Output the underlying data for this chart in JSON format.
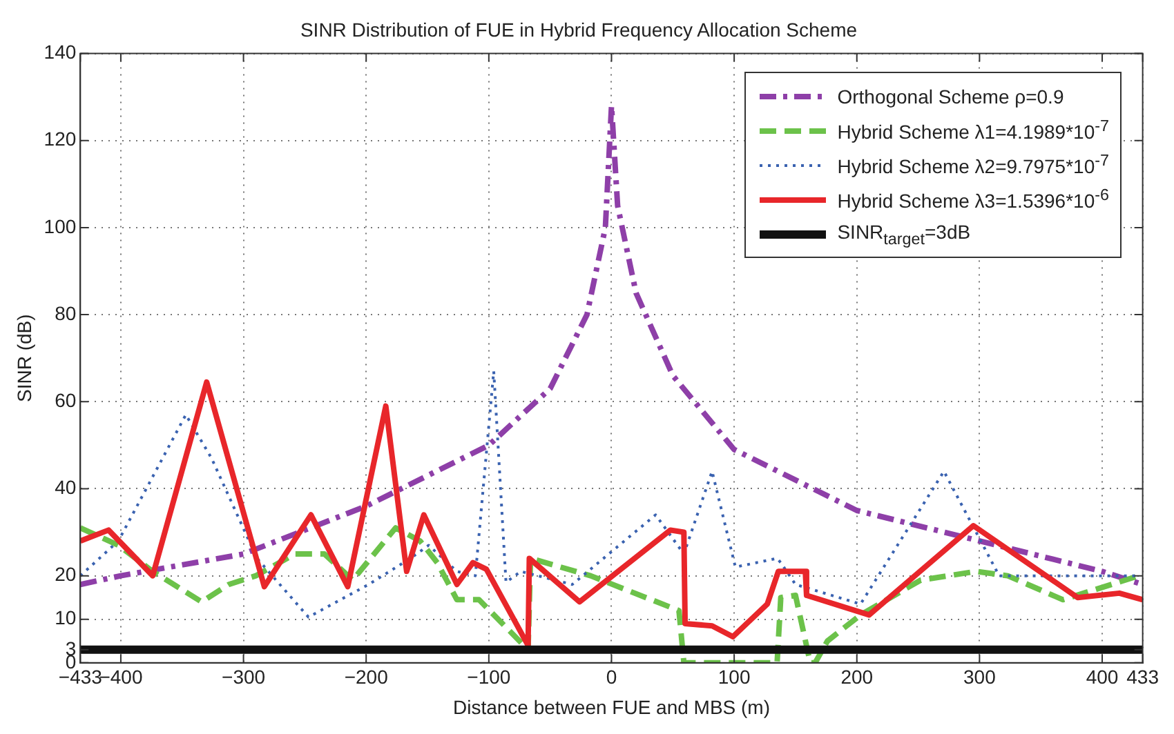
{
  "chart_data": {
    "type": "line",
    "title": "SINR Distribution of FUE in Hybrid Frequency Allocation Scheme",
    "xlabel": "Distance between FUE and MBS (m)",
    "ylabel": "SINR (dB)",
    "xlim": [
      -433,
      433
    ],
    "xticks": [
      -433,
      -400,
      -300,
      -200,
      -100,
      0,
      100,
      200,
      300,
      400,
      433
    ],
    "ylim": [
      0,
      140
    ],
    "yticks": [
      0,
      3,
      10,
      20,
      40,
      60,
      80,
      100,
      120,
      140
    ],
    "grid": true,
    "legend": "top right",
    "series": [
      {
        "name": "Orthogonal Scheme ρ=0.9",
        "color": "#8e3fa8",
        "line_style": "dashdot",
        "x": [
          -433,
          -400,
          -300,
          -200,
          -100,
          -50,
          -20,
          -5,
          0,
          5,
          20,
          50,
          100,
          200,
          300,
          400,
          433
        ],
        "values": [
          18,
          20,
          25,
          36,
          50,
          63,
          80,
          100,
          128,
          105,
          85,
          66,
          49,
          35,
          28,
          21,
          18
        ]
      },
      {
        "name": "Hybrid Scheme λ1=4.1989*10$^{-7}$",
        "color": "#6cc24a",
        "line_style": "dashed",
        "x": [
          -433,
          -402,
          -374,
          -334,
          -312,
          -290,
          -258,
          -234,
          -211,
          -176,
          -156,
          -142,
          -126,
          -108,
          -68,
          -66,
          -17,
          55,
          59,
          135,
          138,
          150,
          162,
          166,
          176,
          203,
          252,
          297,
          323,
          368,
          430
        ],
        "values": [
          31,
          27,
          21,
          14,
          18,
          20,
          25,
          25,
          19,
          31,
          28,
          23,
          14.5,
          14.5,
          3,
          24,
          20,
          12,
          0,
          0,
          15,
          15.5,
          0,
          0,
          5,
          11,
          19,
          21,
          20,
          14.5,
          20
        ]
      },
      {
        "name": "Hybrid Scheme λ2=9.7975*10$^{-7}$",
        "color": "#3a62b0",
        "line_style": "dotted",
        "x": [
          -433,
          -402,
          -347,
          -326,
          -289,
          -247,
          -198,
          -164,
          -149,
          -126,
          -111,
          -96,
          -86,
          -74,
          -32,
          36,
          59,
          82,
          101,
          135,
          138,
          150,
          203,
          271,
          316,
          368,
          430
        ],
        "values": [
          20,
          28,
          57,
          47,
          24,
          10.5,
          18,
          24,
          27,
          21,
          20,
          67,
          18.5,
          21,
          18,
          34,
          25,
          44,
          22,
          24,
          23,
          18,
          13.5,
          44,
          20,
          20,
          20
        ]
      },
      {
        "name": "Hybrid Scheme λ3=1.5396*10$^{-6}$",
        "color": "#e8262a",
        "line_style": "solid",
        "x": [
          -433,
          -410,
          -374,
          -330,
          -283,
          -245,
          -215,
          -184,
          -167,
          -153,
          -126,
          -113,
          -102,
          -68,
          -67,
          -26,
          48,
          59,
          60,
          82,
          99,
          127,
          136,
          158,
          159,
          210,
          295,
          380,
          414,
          433
        ],
        "values": [
          28,
          30.5,
          20,
          64.5,
          17.5,
          34,
          17.5,
          59,
          21,
          34,
          18,
          23,
          21.5,
          4,
          24,
          14,
          30.5,
          30,
          9,
          8.5,
          6,
          13.5,
          21,
          21,
          15.5,
          11,
          31.5,
          15,
          16,
          14.5
        ]
      },
      {
        "name": "SINR$_{target}$=3dB",
        "color": "#111111",
        "line_style": "solid",
        "x": [
          -433,
          433
        ],
        "values": [
          3,
          3
        ]
      }
    ]
  }
}
